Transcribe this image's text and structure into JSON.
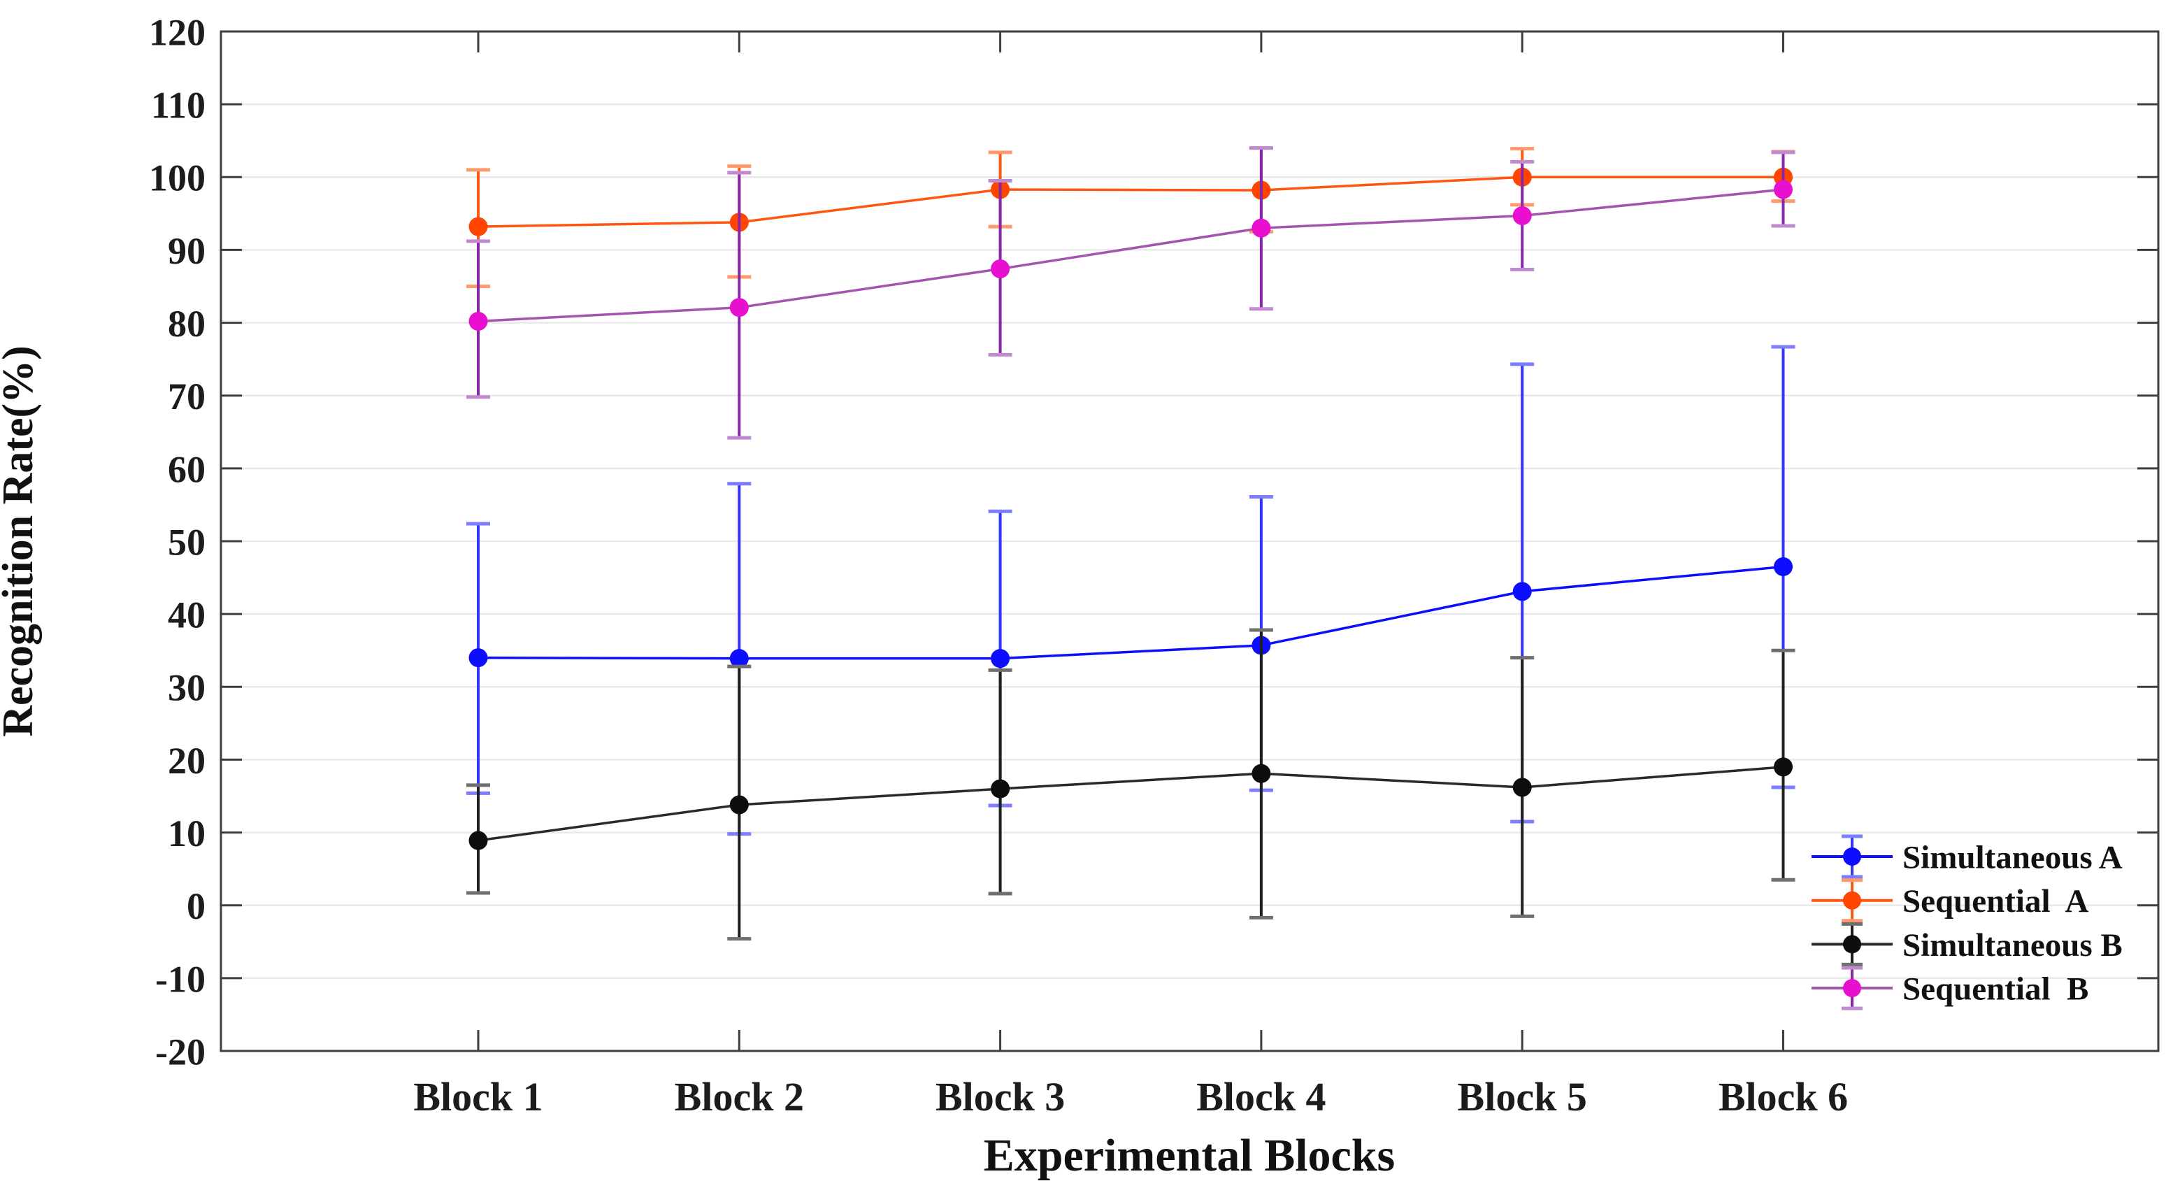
{
  "figure": {
    "background": "#ffffff",
    "frame_color": "#3f3f3f",
    "gridline_color": "#e9e9e9",
    "y_axis_title": "Recognition Rate(%)",
    "x_axis_title": "Experimental Blocks"
  },
  "chart_data": {
    "type": "line",
    "title": "",
    "xlabel": "Experimental Blocks",
    "ylabel": "Recognition Rate(%)",
    "categories": [
      "Block 1",
      "Block 2",
      "Block 3",
      "Block 4",
      "Block 5",
      "Block 6"
    ],
    "ylim": [
      -20,
      120
    ],
    "ytick_step": 10,
    "grid": "horizontal-only",
    "error_bars": true,
    "legend_position": "inside-bottom-right",
    "series": [
      {
        "name": "Simultaneous A",
        "marker": "circle",
        "color": "#0d0dff",
        "line_color": "#0d0dff",
        "err_color": "#3333ff",
        "cap_color": "#7d7dff",
        "values": [
          34.0,
          33.9,
          33.9,
          35.7,
          43.1,
          46.5
        ],
        "err_low": [
          15.4,
          9.8,
          13.7,
          15.8,
          11.5,
          16.2
        ],
        "err_high": [
          52.4,
          57.9,
          54.1,
          56.1,
          74.3,
          76.7
        ]
      },
      {
        "name": "Sequential  A",
        "marker": "circle",
        "color": "#ff4500",
        "line_color": "#ff5510",
        "err_color": "#ff5a14",
        "cap_color": "#ff9a6e",
        "values": [
          93.2,
          93.8,
          98.3,
          98.2,
          100.0,
          100.0
        ],
        "err_low": [
          85.0,
          86.3,
          93.2,
          92.5,
          96.2,
          96.7
        ],
        "err_high": [
          101.0,
          101.5,
          103.4,
          104.0,
          103.9,
          103.5
        ]
      },
      {
        "name": "Simultaneous B",
        "marker": "circle",
        "color": "#0d0d0d",
        "line_color": "#2a2a2a",
        "err_color": "#1f1f1f",
        "cap_color": "#6f6f6f",
        "values": [
          8.9,
          13.8,
          16.0,
          18.1,
          16.2,
          19.0
        ],
        "err_low": [
          1.7,
          -4.6,
          1.6,
          -1.7,
          -1.5,
          3.5
        ],
        "err_high": [
          16.5,
          32.8,
          32.3,
          37.8,
          34.0,
          35.0
        ]
      },
      {
        "name": "Sequential  B",
        "marker": "circle",
        "color": "#e90fce",
        "line_color": "#a355ad",
        "err_color": "#8626a8",
        "cap_color": "#c08ad0",
        "values": [
          80.2,
          82.1,
          87.4,
          93.0,
          94.7,
          98.3
        ],
        "err_low": [
          69.8,
          64.2,
          75.6,
          81.9,
          87.3,
          93.3
        ],
        "err_high": [
          91.2,
          100.6,
          99.5,
          104.0,
          102.1,
          103.4
        ]
      }
    ]
  }
}
